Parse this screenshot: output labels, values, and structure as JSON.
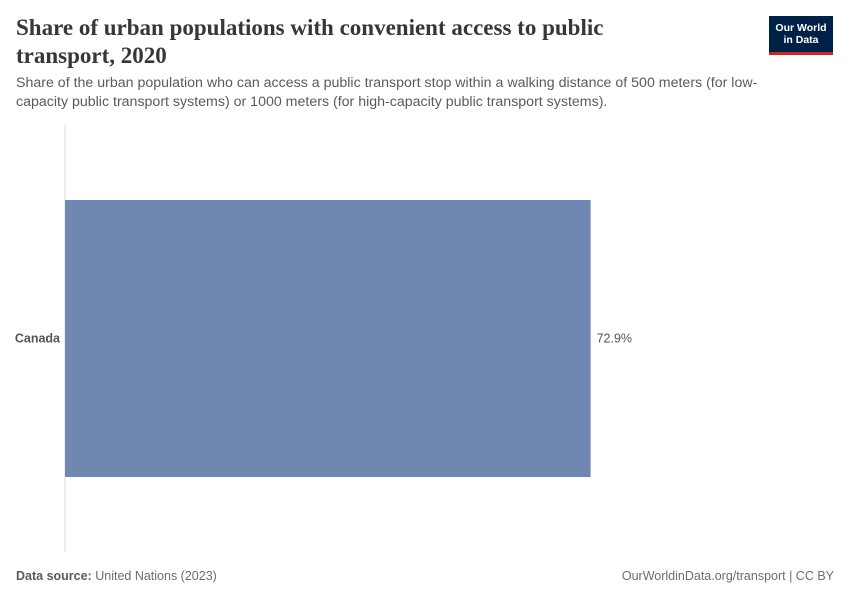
{
  "header": {
    "title": "Share of urban populations with convenient access to public transport, 2020",
    "subtitle": "Share of the urban population who can access a public transport stop within a walking distance of 500 meters (for low-capacity public transport systems) or 1000 meters (for high-capacity public transport systems).",
    "logo_line1": "Our World",
    "logo_line2": "in Data"
  },
  "footer": {
    "source_label": "Data source:",
    "source_text": "United Nations (2023)",
    "link": "OurWorldinData.org/transport | CC BY"
  },
  "colors": {
    "bar": "#6f88b1",
    "axis": "#dddddd",
    "label": "#555555"
  },
  "chart_data": {
    "type": "bar",
    "orientation": "horizontal",
    "categories": [
      "Canada"
    ],
    "values": [
      72.9
    ],
    "value_labels": [
      "72.9%"
    ],
    "unit": "%",
    "xlim": [
      0,
      100
    ]
  }
}
